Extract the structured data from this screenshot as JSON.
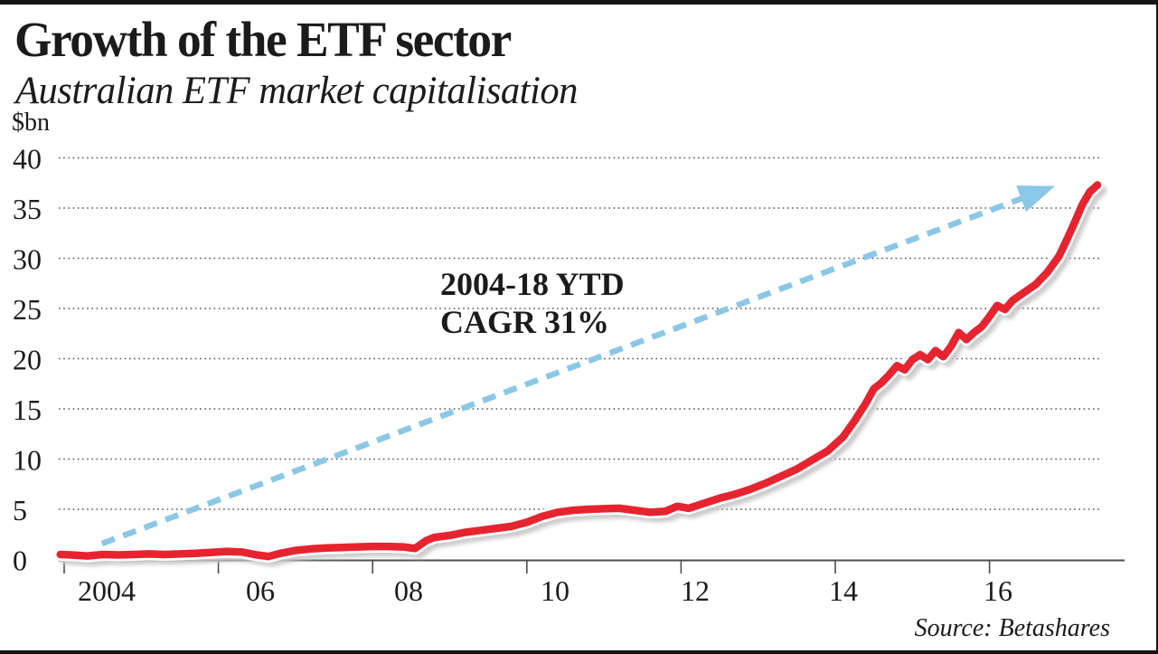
{
  "header": {
    "title": "Growth of the ETF sector",
    "subtitle": "Australian ETF market capitalisation"
  },
  "footer": {
    "source": "Source: Betashares"
  },
  "chart_data": {
    "type": "line",
    "title": "Growth of the ETF sector",
    "subtitle": "Australian ETF market capitalisation",
    "unit": "$bn",
    "xlabel": "",
    "ylabel": "$bn",
    "ylim": [
      0,
      40
    ],
    "xlim": [
      2003.93,
      2017.75
    ],
    "yticks": [
      0,
      5,
      10,
      15,
      20,
      25,
      30,
      35,
      40
    ],
    "xticks": [
      2004,
      2006,
      2008,
      2010,
      2012,
      2014,
      2016
    ],
    "xtick_labels": [
      "2004",
      "06",
      "08",
      "10",
      "12",
      "14",
      "16"
    ],
    "grid": {
      "horizontal": true,
      "vertical": false,
      "style": "dotted"
    },
    "legend": "none",
    "annotation": {
      "line1": "2004-18 YTD",
      "line2": "CAGR 31%"
    },
    "trend_arrow": {
      "style": "dashed-arrow",
      "color": "#8BC7E6",
      "from": {
        "x": 2004.49,
        "y": 1.58
      },
      "to": {
        "x": 2016.85,
        "y": 37.2
      }
    },
    "series": [
      {
        "name": "Australian ETF market capitalisation",
        "color": "#E62430",
        "x": [
          2003.95,
          2004.1,
          2004.3,
          2004.5,
          2004.7,
          2004.9,
          2005.1,
          2005.3,
          2005.5,
          2005.7,
          2005.9,
          2006.1,
          2006.3,
          2006.5,
          2006.65,
          2006.8,
          2007,
          2007.2,
          2007.4,
          2007.6,
          2007.8,
          2008,
          2008.2,
          2008.4,
          2008.55,
          2008.7,
          2008.8,
          2009,
          2009.2,
          2009.4,
          2009.6,
          2009.8,
          2010,
          2010.2,
          2010.4,
          2010.6,
          2010.8,
          2011,
          2011.2,
          2011.4,
          2011.6,
          2011.8,
          2011.95,
          2012.1,
          2012.3,
          2012.5,
          2012.7,
          2012.9,
          2013.1,
          2013.3,
          2013.5,
          2013.7,
          2013.9,
          2014.1,
          2014.25,
          2014.4,
          2014.5,
          2014.6,
          2014.7,
          2014.8,
          2014.9,
          2015,
          2015.1,
          2015.2,
          2015.3,
          2015.4,
          2015.5,
          2015.6,
          2015.7,
          2015.8,
          2015.9,
          2016,
          2016.1,
          2016.2,
          2016.3,
          2016.45,
          2016.6,
          2016.75,
          2016.9,
          2017,
          2017.1,
          2017.2,
          2017.3,
          2017.4
        ],
        "y": [
          0.5,
          0.45,
          0.35,
          0.5,
          0.45,
          0.5,
          0.55,
          0.5,
          0.55,
          0.6,
          0.7,
          0.8,
          0.75,
          0.45,
          0.3,
          0.6,
          0.9,
          1.05,
          1.15,
          1.2,
          1.25,
          1.3,
          1.3,
          1.25,
          1.1,
          1.9,
          2.2,
          2.4,
          2.7,
          2.9,
          3.1,
          3.3,
          3.7,
          4.3,
          4.7,
          4.9,
          5,
          5.05,
          5.1,
          4.9,
          4.7,
          4.8,
          5.3,
          5.1,
          5.6,
          6.1,
          6.5,
          7,
          7.6,
          8.3,
          9,
          9.9,
          10.8,
          12.2,
          13.8,
          15.6,
          17,
          17.6,
          18.4,
          19.3,
          18.9,
          19.9,
          20.4,
          19.9,
          20.8,
          20.2,
          21.2,
          22.6,
          21.9,
          22.6,
          23.2,
          24.2,
          25.3,
          24.9,
          25.8,
          26.6,
          27.4,
          28.6,
          30.2,
          31.8,
          33.5,
          35.3,
          36.6,
          37.3
        ]
      }
    ],
    "source": "Source: Betashares"
  },
  "colors": {
    "background": "#FFFFFF",
    "rule_black": "#141414",
    "text": "#1B1B1B",
    "line_red": "#E62430",
    "line_casing": "#FFFFFF",
    "line_shadow": "#C6C6C6",
    "arrow_blue": "#8BC7E6",
    "grid": "#55555A",
    "axis": "#4D4D4D"
  }
}
